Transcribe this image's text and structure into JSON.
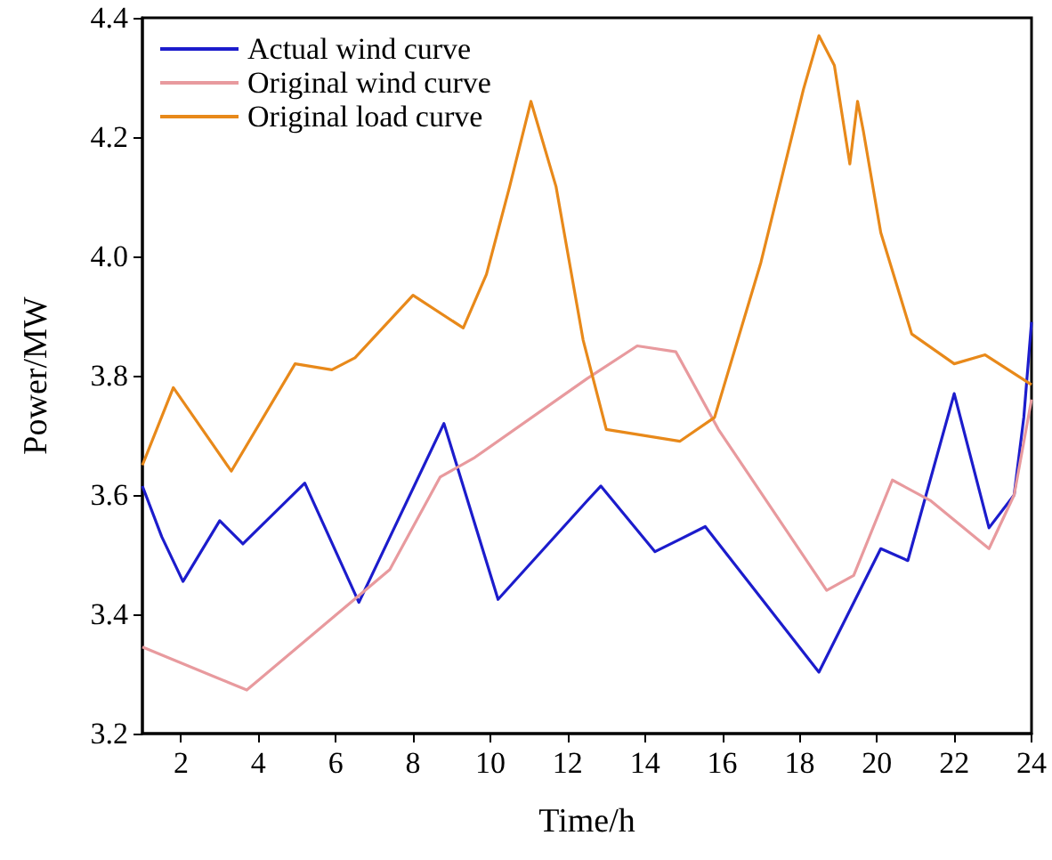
{
  "chart_data": {
    "type": "line",
    "xlabel": "Time/h",
    "ylabel": "Power/MW",
    "xlim": [
      1,
      24
    ],
    "xticks": [
      2,
      4,
      6,
      8,
      10,
      12,
      14,
      16,
      18,
      20,
      22,
      24
    ],
    "ylim": [
      3.2,
      4.4
    ],
    "yticks": [
      3.2,
      3.4,
      3.6,
      3.8,
      {
        "value": 4,
        "label": "4.0"
      },
      4.2,
      4.4
    ],
    "grid": false,
    "legend": "top left",
    "marker": "none",
    "line_style": "solid",
    "series": [
      {
        "name": "Actual wind curve",
        "color": "#1c1ccc",
        "x": [
          1,
          1.5,
          2.05,
          3.0,
          3.6,
          5.2,
          6.6,
          8.8,
          10.2,
          12.5,
          12.86,
          14.26,
          15.56,
          18.5,
          20.1,
          20.8,
          22.0,
          22.9,
          23.55,
          23.8,
          24
        ],
        "values": [
          3.615,
          3.53,
          3.455,
          3.557,
          3.518,
          3.62,
          3.42,
          3.72,
          3.425,
          3.59,
          3.615,
          3.505,
          3.547,
          3.303,
          3.51,
          3.49,
          3.77,
          3.545,
          3.6,
          3.73,
          3.89
        ]
      },
      {
        "name": "Original wind curve",
        "color": "#e89a9e",
        "x": [
          1,
          3.7,
          7.4,
          8.7,
          9.6,
          12.5,
          13.8,
          14.8,
          15.9,
          18.7,
          19.4,
          20.4,
          21.4,
          22.9,
          23.55,
          24
        ],
        "values": [
          3.345,
          3.273,
          3.475,
          3.63,
          3.663,
          3.795,
          3.85,
          3.84,
          3.71,
          3.44,
          3.465,
          3.625,
          3.59,
          3.51,
          3.6,
          3.76
        ]
      },
      {
        "name": "Original load curve",
        "color": "#e8891a",
        "x": [
          1,
          1.8,
          3.3,
          4.95,
          5.9,
          6.5,
          8.0,
          9.3,
          9.9,
          10.5,
          11.05,
          11.7,
          12.4,
          13.0,
          14.9,
          15.8,
          17.0,
          18.1,
          18.5,
          18.9,
          19.3,
          19.5,
          19.65,
          20.1,
          20.9,
          22,
          22.8,
          24
        ],
        "values": [
          3.65,
          3.78,
          3.64,
          3.82,
          3.81,
          3.83,
          3.935,
          3.88,
          3.97,
          4.117,
          4.26,
          4.117,
          3.86,
          3.71,
          3.69,
          3.73,
          3.99,
          4.28,
          4.37,
          4.32,
          4.155,
          4.26,
          4.21,
          4.04,
          3.87,
          3.82,
          3.835,
          3.785
        ]
      }
    ]
  }
}
